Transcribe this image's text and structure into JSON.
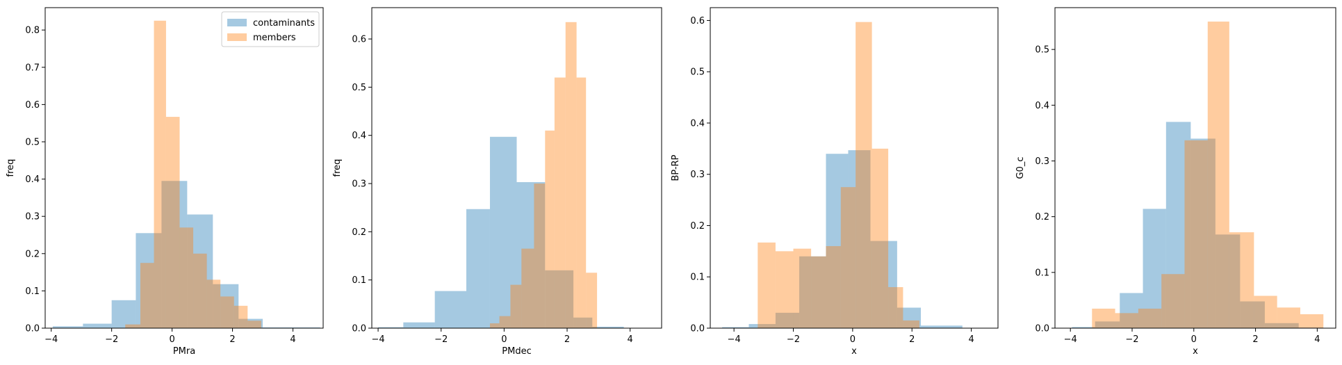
{
  "figure": {
    "background": "#ffffff"
  },
  "colors": {
    "contaminants": "#1f77b4",
    "members": "#ff7f0e",
    "alpha": 0.4
  },
  "chart_data": [
    {
      "type": "histogram",
      "xlabel": "PMra",
      "ylabel": "freq",
      "xlim": [
        -4.2,
        5.0
      ],
      "ylim": [
        0,
        0.86
      ],
      "xticks": [
        -4,
        -2,
        0,
        2,
        4
      ],
      "yticks": [
        0.0,
        0.1,
        0.2,
        0.3,
        0.4,
        0.5,
        0.6,
        0.7,
        0.8
      ],
      "legend": {
        "position": "top-right",
        "entries": [
          "contaminants",
          "members"
        ]
      },
      "series": [
        {
          "name": "contaminants",
          "color": "#1f77b4",
          "bins": [
            -3.95,
            -2.95,
            -2.0,
            -1.2,
            -0.35,
            0.5,
            1.35,
            2.2,
            3.0,
            4.9
          ],
          "values": [
            0.005,
            0.012,
            0.075,
            0.255,
            0.395,
            0.305,
            0.118,
            0.025,
            0.002
          ]
        },
        {
          "name": "members",
          "color": "#ff7f0e",
          "bins": [
            -1.55,
            -1.05,
            -0.6,
            -0.2,
            0.25,
            0.7,
            1.15,
            1.6,
            2.05,
            2.5,
            2.95
          ],
          "values": [
            0.01,
            0.175,
            0.825,
            0.567,
            0.27,
            0.2,
            0.13,
            0.085,
            0.06,
            0.02
          ]
        }
      ]
    },
    {
      "type": "histogram",
      "xlabel": "PMdec",
      "ylabel": "freq",
      "xlim": [
        -4.2,
        5.0
      ],
      "ylim": [
        0,
        0.665
      ],
      "xticks": [
        -4,
        -2,
        0,
        2,
        4
      ],
      "yticks": [
        0.0,
        0.1,
        0.2,
        0.3,
        0.4,
        0.5,
        0.6
      ],
      "series": [
        {
          "name": "contaminants",
          "color": "#1f77b4",
          "bins": [
            -4.0,
            -3.2,
            -2.2,
            -1.2,
            -0.45,
            0.4,
            1.3,
            2.2,
            2.8,
            3.8
          ],
          "values": [
            0.002,
            0.012,
            0.077,
            0.247,
            0.397,
            0.303,
            0.12,
            0.022,
            0.003
          ]
        },
        {
          "name": "members",
          "color": "#ff7f0e",
          "bins": [
            -0.45,
            -0.15,
            0.2,
            0.55,
            0.95,
            1.3,
            1.6,
            1.95,
            2.3,
            2.6,
            2.95
          ],
          "values": [
            0.01,
            0.025,
            0.09,
            0.165,
            0.3,
            0.41,
            0.52,
            0.635,
            0.52,
            0.115
          ]
        }
      ]
    },
    {
      "type": "histogram",
      "xlabel": "x",
      "ylabel": "BP-RP",
      "xlim": [
        -4.8,
        4.9
      ],
      "ylim": [
        0,
        0.625
      ],
      "xticks": [
        -4,
        -2,
        0,
        2,
        4
      ],
      "yticks": [
        0.0,
        0.1,
        0.2,
        0.3,
        0.4,
        0.5,
        0.6
      ],
      "series": [
        {
          "name": "contaminants",
          "color": "#1f77b4",
          "bins": [
            -4.4,
            -3.5,
            -2.6,
            -1.8,
            -0.9,
            -0.15,
            0.6,
            1.5,
            2.3,
            3.7
          ],
          "values": [
            0.002,
            0.008,
            0.03,
            0.14,
            0.34,
            0.347,
            0.17,
            0.04,
            0.005
          ]
        },
        {
          "name": "members",
          "color": "#ff7f0e",
          "bins": [
            -3.2,
            -2.6,
            -2.0,
            -1.4,
            -0.9,
            -0.4,
            0.1,
            0.65,
            1.2,
            1.7,
            2.25
          ],
          "values": [
            0.167,
            0.15,
            0.155,
            0.14,
            0.16,
            0.275,
            0.597,
            0.35,
            0.08,
            0.015
          ]
        }
      ]
    },
    {
      "type": "histogram",
      "xlabel": "x",
      "ylabel": "G0_c",
      "xlim": [
        -4.5,
        4.6
      ],
      "ylim": [
        0,
        0.575
      ],
      "xticks": [
        -4,
        -2,
        0,
        2,
        4
      ],
      "yticks": [
        0.0,
        0.1,
        0.2,
        0.3,
        0.4,
        0.5
      ],
      "series": [
        {
          "name": "contaminants",
          "color": "#1f77b4",
          "bins": [
            -3.95,
            -3.2,
            -2.4,
            -1.65,
            -0.9,
            -0.1,
            0.7,
            1.5,
            2.3,
            3.4,
            4.2
          ],
          "values": [
            0.002,
            0.012,
            0.063,
            0.214,
            0.37,
            0.34,
            0.168,
            0.048,
            0.009,
            0.001
          ]
        },
        {
          "name": "members",
          "color": "#ff7f0e",
          "bins": [
            -3.3,
            -2.55,
            -1.8,
            -1.05,
            -0.3,
            0.45,
            1.15,
            1.95,
            2.7,
            3.45,
            4.2
          ],
          "values": [
            0.035,
            0.027,
            0.035,
            0.097,
            0.337,
            0.55,
            0.172,
            0.058,
            0.037,
            0.025
          ]
        }
      ]
    }
  ]
}
